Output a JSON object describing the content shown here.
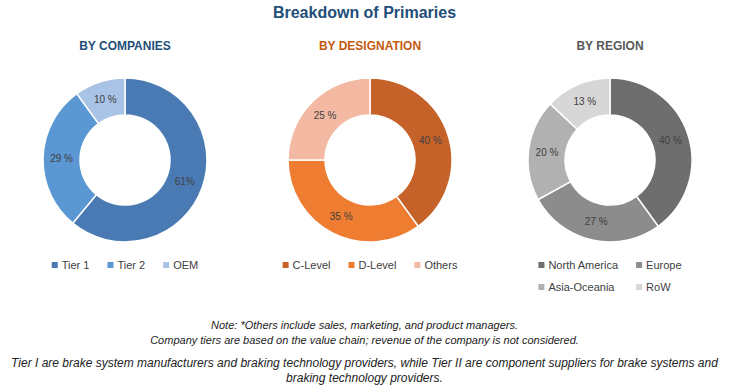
{
  "title": "Breakdown of Primaries",
  "chart_data": [
    {
      "type": "donut",
      "title": "BY COMPANIES",
      "categories": [
        "Tier 1",
        "Tier 2",
        "OEM"
      ],
      "values": [
        61,
        29,
        10
      ],
      "value_labels": [
        "61%",
        "29 %",
        "10 %"
      ],
      "colors": [
        "#4a7ab3",
        "#5a97d3",
        "#a9c3e6"
      ],
      "data_labels": true,
      "legend": "bottom"
    },
    {
      "type": "donut",
      "title": "BY DESIGNATION",
      "categories": [
        "C-Level",
        "D-Level",
        "Others"
      ],
      "values": [
        40,
        35,
        25
      ],
      "value_labels": [
        "40 %",
        "35 %",
        "25 %"
      ],
      "colors": [
        "#c5622a",
        "#ee7d31",
        "#f4b9a3"
      ],
      "data_labels": true,
      "legend": "bottom"
    },
    {
      "type": "donut",
      "title": "BY REGION",
      "categories": [
        "North America",
        "Europe",
        "Asia-Oceania",
        "RoW"
      ],
      "values": [
        40,
        27,
        20,
        13
      ],
      "value_labels": [
        "40 %",
        "27 %",
        "20 %",
        "13 %"
      ],
      "colors": [
        "#6e6e6e",
        "#8c8c8c",
        "#b1b1b1",
        "#d7d7d7"
      ],
      "data_labels": true,
      "legend": "bottom"
    }
  ],
  "notes": [
    "Note: *Others include sales, marketing, and product managers.",
    "Company tiers are based on the value chain; revenue of the company is not considered.",
    "Tier I are brake system manufacturers and braking technology providers, while Tier II are component suppliers for brake systems and braking technology providers."
  ]
}
